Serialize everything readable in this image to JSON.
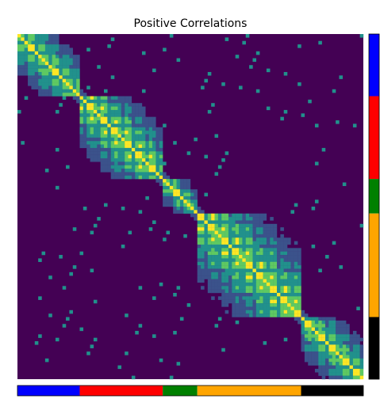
{
  "chart_data": {
    "type": "heatmap",
    "title": "Positive Correlations",
    "xlabel": "",
    "ylabel": "",
    "grid": false,
    "background_color": "#440154",
    "colormap": [
      "#440154",
      "#3b528b",
      "#21918c",
      "#5ec962",
      "#fde725"
    ],
    "n_features": 100,
    "groups": [
      {
        "color": "#0000ff",
        "start": 0,
        "end": 18
      },
      {
        "color": "#ff0000",
        "start": 18,
        "end": 42
      },
      {
        "color": "#008000",
        "start": 42,
        "end": 52
      },
      {
        "color": "#ffa500",
        "start": 52,
        "end": 82
      },
      {
        "color": "#000000",
        "start": 82,
        "end": 100
      }
    ]
  }
}
